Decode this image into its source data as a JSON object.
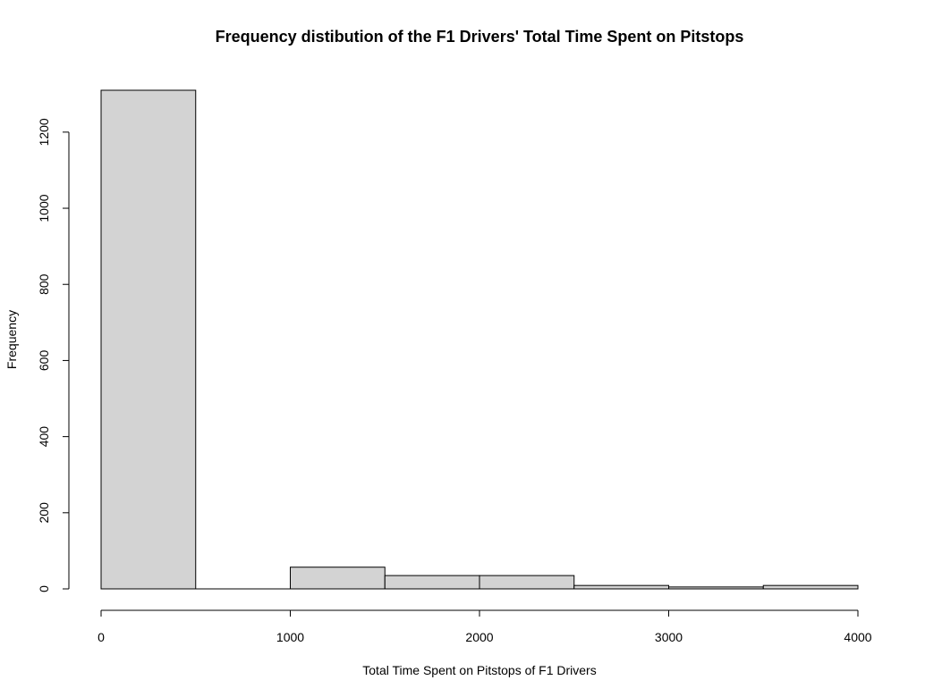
{
  "chart_data": {
    "type": "bar",
    "title": "Frequency distibution of the F1 Drivers' Total Time Spent on Pitstops",
    "xlabel": "Total Time Spent on Pitstops of F1 Drivers",
    "ylabel": "Frequency",
    "bins": [
      {
        "start": 0,
        "end": 500,
        "count": 1310
      },
      {
        "start": 500,
        "end": 1000,
        "count": 0
      },
      {
        "start": 1000,
        "end": 1500,
        "count": 57
      },
      {
        "start": 1500,
        "end": 2000,
        "count": 35
      },
      {
        "start": 2000,
        "end": 2500,
        "count": 35
      },
      {
        "start": 2500,
        "end": 3000,
        "count": 9
      },
      {
        "start": 3000,
        "end": 3500,
        "count": 5
      },
      {
        "start": 3500,
        "end": 4000,
        "count": 9
      }
    ],
    "xlim": [
      0,
      4000
    ],
    "ylim": [
      0,
      1310
    ],
    "xticks": [
      0,
      1000,
      2000,
      3000,
      4000
    ],
    "yticks": [
      0,
      200,
      400,
      600,
      800,
      1000,
      1200
    ],
    "xtick_labels": [
      "0",
      "1000",
      "2000",
      "3000",
      "4000"
    ],
    "ytick_labels": [
      "0",
      "200",
      "400",
      "600",
      "800",
      "1000",
      "1200"
    ],
    "grid": false,
    "legend": "none",
    "colors": {
      "bar_fill": "#d3d3d3",
      "bar_stroke": "#000000"
    }
  }
}
